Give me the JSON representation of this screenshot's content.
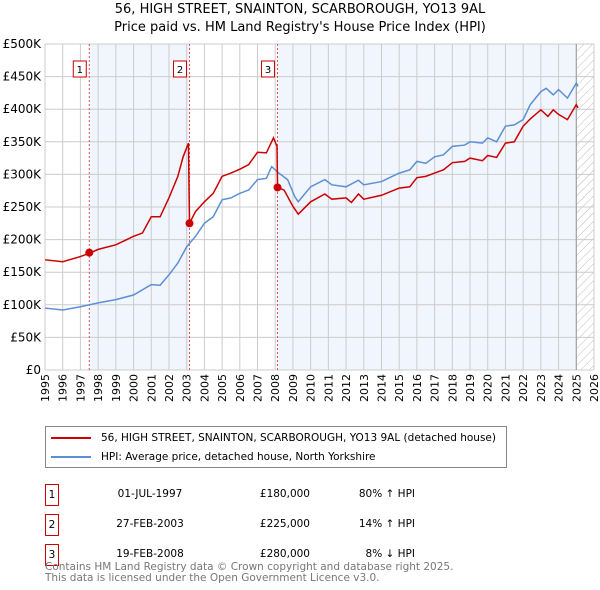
{
  "title_line1": "56, HIGH STREET, SNAINTON, SCARBOROUGH, YO13 9AL",
  "title_line2": "Price paid vs. HM Land Registry's House Price Index (HPI)",
  "chart_data": {
    "type": "line",
    "xlim": [
      1995,
      2026
    ],
    "ylim": [
      0,
      500000
    ],
    "yticks": [
      {
        "v": 0,
        "label": "£0"
      },
      {
        "v": 50000,
        "label": "£50K"
      },
      {
        "v": 100000,
        "label": "£100K"
      },
      {
        "v": 150000,
        "label": "£150K"
      },
      {
        "v": 200000,
        "label": "£200K"
      },
      {
        "v": 250000,
        "label": "£250K"
      },
      {
        "v": 300000,
        "label": "£300K"
      },
      {
        "v": 350000,
        "label": "£350K"
      },
      {
        "v": 400000,
        "label": "£400K"
      },
      {
        "v": 450000,
        "label": "£450K"
      },
      {
        "v": 500000,
        "label": "£500K"
      }
    ],
    "xticks": [
      "1995",
      "1996",
      "1997",
      "1998",
      "1999",
      "2000",
      "2001",
      "2002",
      "2003",
      "2004",
      "2005",
      "2006",
      "2007",
      "2008",
      "2009",
      "2010",
      "2011",
      "2012",
      "2013",
      "2014",
      "2015",
      "2016",
      "2017",
      "2018",
      "2019",
      "2020",
      "2021",
      "2022",
      "2023",
      "2024",
      "2025",
      "2026"
    ],
    "series": [
      {
        "name": "56, HIGH STREET, SNAINTON, SCARBOROUGH, YO13 9AL (detached house)",
        "color": "#cc0000",
        "x": [
          1995,
          1996,
          1997,
          1997.5,
          1998,
          1999,
          2000,
          2000.5,
          2001,
          2001.5,
          2002,
          2002.5,
          2002.8,
          2003.1,
          2003.16,
          2003.5,
          2004,
          2004.5,
          2005,
          2005.5,
          2006,
          2006.5,
          2007,
          2007.5,
          2007.9,
          2008.1,
          2008.13,
          2008.5,
          2009,
          2009.3,
          2010,
          2010.8,
          2011.2,
          2012,
          2012.3,
          2012.7,
          2013,
          2014,
          2015,
          2015.6,
          2016,
          2016.5,
          2017,
          2017.5,
          2018,
          2018.7,
          2019,
          2019.7,
          2020,
          2020.5,
          2021,
          2021.5,
          2022,
          2022.4,
          2023,
          2023.4,
          2023.7,
          2024,
          2024.5,
          2025,
          2025.1
        ],
        "y": [
          169000,
          166000,
          174000,
          179000,
          185000,
          192000,
          205000,
          210000,
          235000,
          235000,
          264000,
          297000,
          327000,
          348000,
          225000,
          243000,
          258000,
          271000,
          297000,
          302000,
          308000,
          315000,
          334000,
          333000,
          356000,
          343000,
          280000,
          276000,
          251000,
          239000,
          258000,
          270000,
          262000,
          264000,
          257000,
          270000,
          262000,
          268000,
          279000,
          281000,
          295000,
          297000,
          302000,
          307000,
          318000,
          320000,
          325000,
          321000,
          329000,
          326000,
          348000,
          350000,
          374000,
          385000,
          399000,
          389000,
          399000,
          392000,
          384000,
          407000,
          402000
        ]
      },
      {
        "name": "HPI: Average price, detached house, North Yorkshire",
        "color": "#5b8fd6",
        "x": [
          1995,
          1996,
          1997,
          1997.5,
          1998,
          1999,
          2000,
          2001,
          2001.5,
          2002,
          2002.5,
          2003,
          2003.5,
          2004,
          2004.5,
          2005,
          2005.5,
          2006,
          2006.5,
          2007,
          2007.5,
          2007.8,
          2008.2,
          2008.7,
          2009.1,
          2009.3,
          2010,
          2010.8,
          2011.2,
          2012,
          2012.7,
          2013,
          2014,
          2015,
          2015.6,
          2016,
          2016.5,
          2017,
          2017.5,
          2018,
          2018.7,
          2019,
          2019.7,
          2020,
          2020.5,
          2021,
          2021.5,
          2022,
          2022.4,
          2023,
          2023.3,
          2023.7,
          2024,
          2024.5,
          2025,
          2025.1
        ],
        "y": [
          95000,
          92000,
          97000,
          100000,
          103000,
          108000,
          115000,
          131000,
          130000,
          146000,
          164000,
          189000,
          205000,
          225000,
          235000,
          261000,
          264000,
          271000,
          276000,
          292000,
          294000,
          312000,
          302000,
          292000,
          266000,
          258000,
          281000,
          292000,
          284000,
          281000,
          291000,
          284000,
          289000,
          302000,
          307000,
          320000,
          317000,
          327000,
          330000,
          343000,
          345000,
          350000,
          348000,
          356000,
          350000,
          374000,
          376000,
          384000,
          407000,
          427000,
          432000,
          422000,
          430000,
          417000,
          440000,
          435000
        ]
      }
    ],
    "sales": [
      {
        "id": "1",
        "x": 1997.5,
        "y": 180000
      },
      {
        "id": "2",
        "x": 2003.16,
        "y": 225000
      },
      {
        "id": "3",
        "x": 2008.13,
        "y": 280000
      }
    ],
    "shaded_ranges": [
      [
        1997.5,
        2003.16
      ],
      [
        2008.13,
        2025.0
      ]
    ],
    "forecast_from": 2025.0
  },
  "legend": {
    "red": "56, HIGH STREET, SNAINTON, SCARBOROUGH, YO13 9AL (detached house)",
    "blue": "HPI: Average price, detached house, North Yorkshire"
  },
  "transactions": [
    {
      "num": "1",
      "date": "01-JUL-1997",
      "price": "£180,000",
      "hpi": "80% ↑ HPI"
    },
    {
      "num": "2",
      "date": "27-FEB-2003",
      "price": "£225,000",
      "hpi": "14% ↑ HPI"
    },
    {
      "num": "3",
      "date": "19-FEB-2008",
      "price": "£280,000",
      "hpi": "8% ↓ HPI"
    }
  ],
  "footer": {
    "line1": "Contains HM Land Registry data © Crown copyright and database right 2025.",
    "line2": "This data is licensed under the Open Government Licence v3.0."
  }
}
